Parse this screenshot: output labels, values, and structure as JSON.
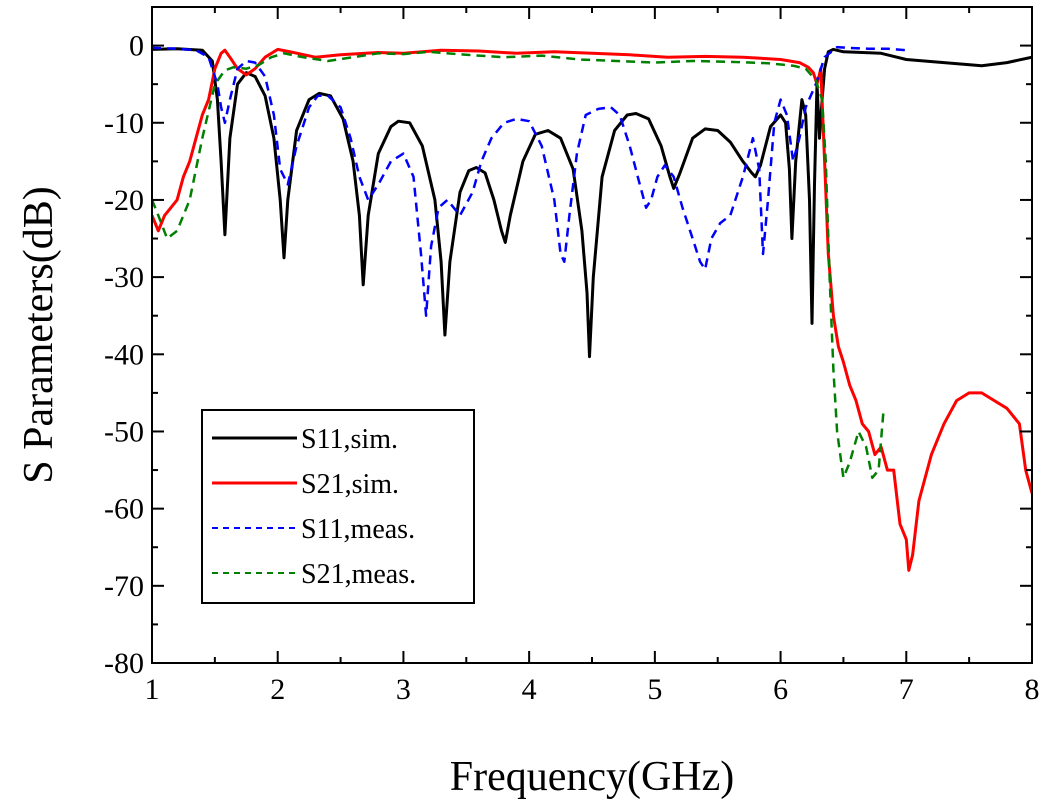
{
  "chart_data": {
    "type": "line",
    "title": "",
    "xlabel": "Frequency(GHz)",
    "ylabel": "S Parameters(dB)",
    "xlim": [
      1,
      8
    ],
    "ylim": [
      -80,
      5
    ],
    "xticks": [
      1,
      2,
      3,
      4,
      5,
      6,
      7,
      8
    ],
    "yticks": [
      0,
      -10,
      -20,
      -30,
      -40,
      -50,
      -60,
      -70,
      -80
    ],
    "grid": false,
    "legend_position": "lower-left",
    "series": [
      {
        "name": "S11,sim.",
        "color": "#000000",
        "dash": "solid",
        "x": [
          1.0,
          1.2,
          1.4,
          1.48,
          1.52,
          1.55,
          1.58,
          1.62,
          1.68,
          1.75,
          1.82,
          1.9,
          1.97,
          2.02,
          2.05,
          2.08,
          2.15,
          2.25,
          2.33,
          2.42,
          2.52,
          2.6,
          2.65,
          2.68,
          2.72,
          2.8,
          2.9,
          2.96,
          3.05,
          3.15,
          3.25,
          3.3,
          3.33,
          3.37,
          3.45,
          3.52,
          3.58,
          3.65,
          3.72,
          3.78,
          3.81,
          3.85,
          3.95,
          4.05,
          4.15,
          4.25,
          4.35,
          4.42,
          4.46,
          4.48,
          4.51,
          4.58,
          4.68,
          4.78,
          4.85,
          4.95,
          5.05,
          5.12,
          5.15,
          5.2,
          5.3,
          5.4,
          5.5,
          5.6,
          5.7,
          5.77,
          5.8,
          5.84,
          5.92,
          6.0,
          6.04,
          6.07,
          6.09,
          6.12,
          6.17,
          6.2,
          6.23,
          6.25,
          6.27,
          6.29,
          6.31,
          6.33,
          6.35,
          6.38,
          6.42,
          6.5,
          6.8,
          7.0,
          7.3,
          7.6,
          7.8,
          8.0
        ],
        "values": [
          -0.5,
          -0.4,
          -0.6,
          -2,
          -7,
          -15,
          -24.5,
          -12,
          -5,
          -3.5,
          -4,
          -6.5,
          -12,
          -20,
          -27.5,
          -20,
          -11,
          -7,
          -6.2,
          -6.5,
          -9.5,
          -15,
          -22,
          -31,
          -22,
          -14,
          -10.5,
          -9.8,
          -10,
          -13,
          -20,
          -28,
          -37.5,
          -28,
          -19,
          -16.2,
          -15.8,
          -16.5,
          -20,
          -24,
          -25.5,
          -22,
          -15,
          -11.5,
          -11,
          -12,
          -16,
          -24,
          -32,
          -40.3,
          -30,
          -17,
          -11,
          -9,
          -8.8,
          -9.5,
          -13,
          -17,
          -18.5,
          -16.5,
          -12,
          -10.8,
          -11,
          -12.5,
          -15,
          -16.5,
          -17,
          -15.5,
          -10.5,
          -9,
          -10,
          -16,
          -25,
          -15,
          -7,
          -9,
          -20,
          -36,
          -18,
          -5,
          -12,
          -7,
          -3,
          -0.8,
          -0.5,
          -0.8,
          -1,
          -1.8,
          -2.2,
          -2.6,
          -2.2,
          -1.5
        ]
      },
      {
        "name": "S21,sim.",
        "color": "#ff0000",
        "dash": "solid",
        "x": [
          1.0,
          1.05,
          1.1,
          1.15,
          1.2,
          1.25,
          1.3,
          1.35,
          1.4,
          1.45,
          1.5,
          1.55,
          1.58,
          1.62,
          1.68,
          1.75,
          1.82,
          1.9,
          2.0,
          2.1,
          2.3,
          2.5,
          2.8,
          3.0,
          3.3,
          3.6,
          3.9,
          4.2,
          4.5,
          4.8,
          5.1,
          5.4,
          5.7,
          6.0,
          6.15,
          6.22,
          6.26,
          6.29,
          6.32,
          6.35,
          6.38,
          6.42,
          6.46,
          6.5,
          6.55,
          6.6,
          6.65,
          6.7,
          6.75,
          6.8,
          6.85,
          6.9,
          6.95,
          7.0,
          7.02,
          7.05,
          7.1,
          7.2,
          7.3,
          7.4,
          7.5,
          7.6,
          7.7,
          7.8,
          7.9,
          7.95,
          8.0
        ],
        "values": [
          -22,
          -24,
          -22,
          -21,
          -20,
          -17,
          -15,
          -12,
          -9,
          -7,
          -3,
          -1,
          -0.6,
          -1.5,
          -3,
          -3.8,
          -3,
          -1.5,
          -0.5,
          -0.8,
          -1.5,
          -1.2,
          -0.9,
          -1,
          -0.6,
          -0.7,
          -1,
          -0.8,
          -1,
          -1.2,
          -1.5,
          -1.4,
          -1.5,
          -1.8,
          -2.2,
          -2.8,
          -3.5,
          -5,
          -3,
          -15,
          -27,
          -35,
          -39,
          -41,
          -44,
          -46,
          -49,
          -50,
          -53,
          -52,
          -55,
          -55,
          -62,
          -64,
          -68,
          -66,
          -59,
          -53,
          -49,
          -46,
          -45,
          -45,
          -46,
          -47,
          -49,
          -55,
          -58
        ]
      },
      {
        "name": "S11,meas.",
        "color": "#0000ff",
        "dash": "dashed",
        "x": [
          1.0,
          1.2,
          1.35,
          1.45,
          1.52,
          1.55,
          1.58,
          1.62,
          1.68,
          1.75,
          1.82,
          1.9,
          1.97,
          2.02,
          2.08,
          2.15,
          2.25,
          2.32,
          2.4,
          2.5,
          2.58,
          2.65,
          2.72,
          2.8,
          2.9,
          3.0,
          3.08,
          3.14,
          3.18,
          3.22,
          3.28,
          3.35,
          3.45,
          3.55,
          3.62,
          3.7,
          3.8,
          3.9,
          4.0,
          4.1,
          4.2,
          4.25,
          4.28,
          4.32,
          4.38,
          4.45,
          4.55,
          4.65,
          4.72,
          4.8,
          4.88,
          4.93,
          4.97,
          5.02,
          5.08,
          5.15,
          5.22,
          5.3,
          5.36,
          5.4,
          5.45,
          5.52,
          5.6,
          5.7,
          5.78,
          5.83,
          5.86,
          5.9,
          5.95,
          6.0,
          6.05,
          6.1,
          6.15,
          6.2,
          6.28,
          6.35,
          6.45,
          6.55,
          6.7,
          6.85,
          7.0
        ],
        "values": [
          -0.3,
          -0.4,
          -0.6,
          -1.5,
          -5,
          -8,
          -10,
          -7,
          -3,
          -2,
          -2.2,
          -4,
          -9,
          -16,
          -18,
          -13,
          -8,
          -6.5,
          -6.5,
          -8,
          -12,
          -17,
          -20,
          -18,
          -15,
          -14,
          -17,
          -27,
          -35,
          -26,
          -21,
          -20,
          -22,
          -19,
          -15,
          -12,
          -10,
          -9.5,
          -9.8,
          -13,
          -20,
          -27,
          -28,
          -22,
          -14,
          -9,
          -8.2,
          -8,
          -9,
          -13,
          -18,
          -21,
          -20,
          -17,
          -15.5,
          -17,
          -21,
          -25,
          -28,
          -29,
          -25,
          -23,
          -22,
          -17,
          -12,
          -16,
          -27,
          -20,
          -10,
          -7,
          -9,
          -15,
          -12,
          -8,
          -5,
          -1.5,
          -0.2,
          -0.3,
          -0.4,
          -0.4,
          -0.6
        ]
      },
      {
        "name": "S21,meas.",
        "color": "#008000",
        "dash": "dashed",
        "x": [
          1.0,
          1.05,
          1.12,
          1.2,
          1.3,
          1.4,
          1.5,
          1.58,
          1.65,
          1.75,
          1.85,
          1.95,
          2.05,
          2.2,
          2.4,
          2.6,
          2.8,
          3.0,
          3.2,
          3.5,
          3.8,
          4.1,
          4.4,
          4.7,
          5.0,
          5.3,
          5.6,
          5.9,
          6.1,
          6.2,
          6.28,
          6.33,
          6.36,
          6.39,
          6.42,
          6.45,
          6.5,
          6.55,
          6.62,
          6.68,
          6.73,
          6.78,
          6.82
        ],
        "values": [
          -20,
          -22,
          -25,
          -24,
          -20,
          -12,
          -5,
          -3.2,
          -2.8,
          -3,
          -2.5,
          -1.5,
          -1,
          -1.5,
          -2,
          -1.5,
          -1,
          -1.1,
          -0.8,
          -1.2,
          -1.5,
          -1.3,
          -1.8,
          -2,
          -2.2,
          -2,
          -2.1,
          -2.3,
          -2.6,
          -3,
          -4.5,
          -7,
          -15,
          -30,
          -42,
          -50,
          -56,
          -54,
          -50,
          -52,
          -56,
          -55,
          -47
        ]
      }
    ]
  }
}
